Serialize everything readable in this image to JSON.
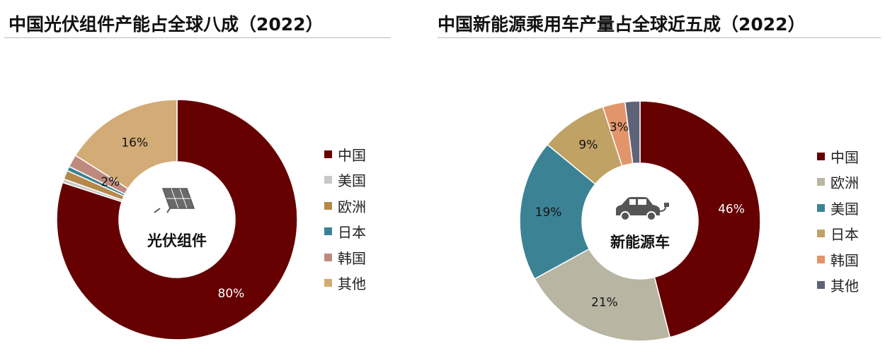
{
  "chart_data": [
    {
      "type": "pie",
      "title": "中国光伏组件产能占全球八成（2022）",
      "center_label": "光伏组件",
      "center_icon": "solar-panel-icon",
      "categories": [
        "中国",
        "美国",
        "欧洲",
        "日本",
        "韩国",
        "其他"
      ],
      "values": [
        80,
        0.5,
        1.2,
        0.6,
        1.7,
        16
      ],
      "data_labels": [
        "80%",
        "",
        "",
        "",
        "2%",
        "16%"
      ],
      "colors": [
        "#660000",
        "#c8c8c8",
        "#b5894a",
        "#3b8294",
        "#be8a7e",
        "#d3ab76"
      ],
      "label_colors": [
        "#ffffff",
        "",
        "",
        "",
        "#111111",
        "#111111"
      ],
      "legend": "right"
    },
    {
      "type": "pie",
      "title": "中国新能源乘用车产量占全球近五成（2022）",
      "center_label": "新能源车",
      "center_icon": "electric-car-icon",
      "categories": [
        "中国",
        "欧洲",
        "美国",
        "日本",
        "韩国",
        "其他"
      ],
      "values": [
        46,
        21,
        19,
        9,
        3,
        2
      ],
      "data_labels": [
        "46%",
        "21%",
        "19%",
        "9%",
        "3%",
        ""
      ],
      "colors": [
        "#660000",
        "#b8b6a2",
        "#3b8294",
        "#c1a265",
        "#e2956a",
        "#5f6378"
      ],
      "label_colors": [
        "#ffffff",
        "#111111",
        "#111111",
        "#111111",
        "#111111",
        ""
      ],
      "legend": "right"
    }
  ]
}
